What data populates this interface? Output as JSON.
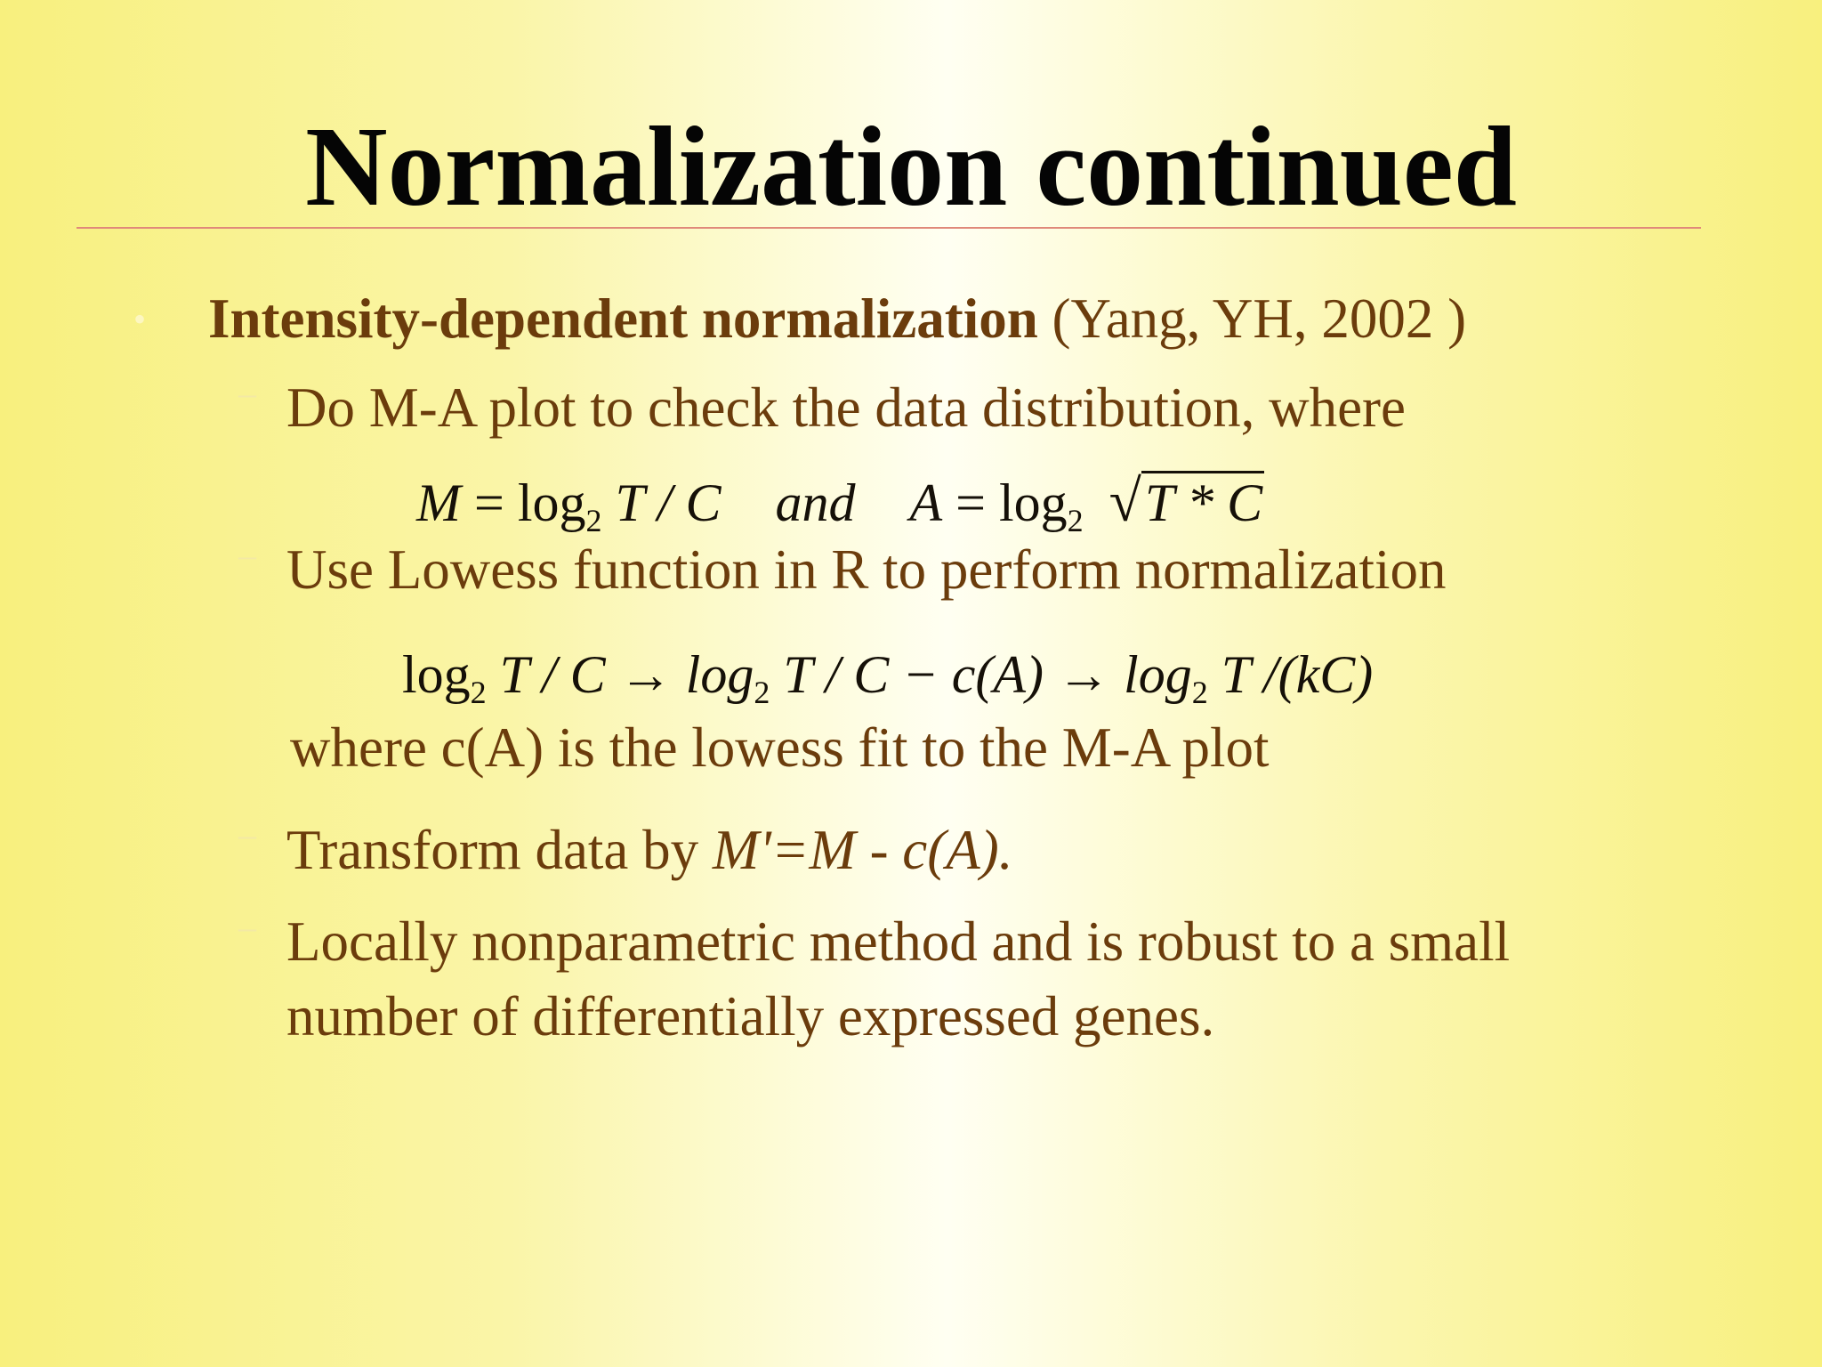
{
  "slide": {
    "title": "Normalization continued",
    "bullet1": {
      "bold": "Intensity-dependent normalization",
      "rest": " (Yang, YH, 2002 )"
    },
    "sub1": "Do M-A plot to check the data distribution, where",
    "eq1": {
      "M": "M",
      "eq": " = log",
      "sub2": "2",
      "frac": " T / C",
      "and": "and",
      "A": "A",
      "eq_b": " = log",
      "sub2b": "2",
      "sqrt": "√",
      "radicand": "T * C"
    },
    "sub2": "Use Lowess function in R to perform normalization",
    "eq2": {
      "log1": "log",
      "s1": "2",
      "p1": " T / C → log",
      "s2": "2",
      "p2": " T / C − c(A) → log",
      "s3": "2",
      "p3": " T /(kC)"
    },
    "where_line": "where c(A) is the lowess fit to the M-A plot",
    "sub3_plain": "Transform data by ",
    "sub3_italic": "M'=M - c(A).",
    "sub4_line1": "Locally nonparametric method and is robust to a small",
    "sub4_line2": "number of differentially expressed genes.",
    "bullet_glyph": "•",
    "dash_glyph": "–"
  }
}
